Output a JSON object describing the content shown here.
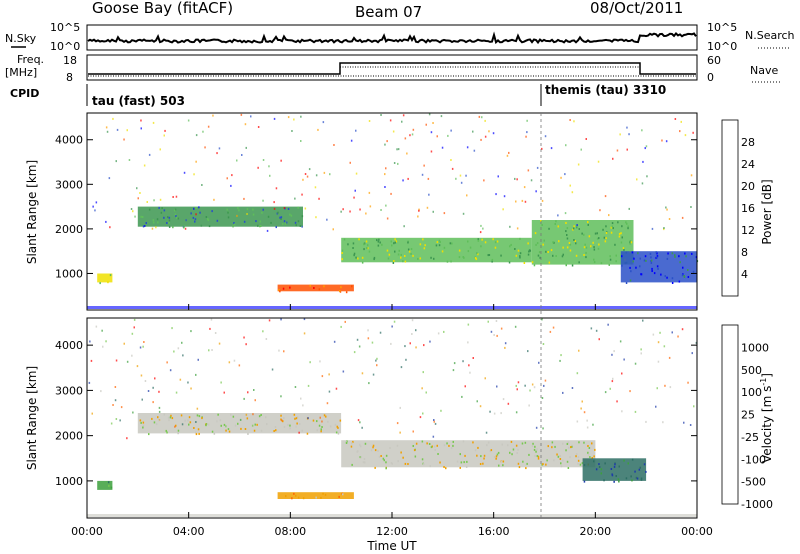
{
  "header": {
    "station": "Goose Bay (fitACF)",
    "beam": "Beam 07",
    "date": "08/Oct/2011"
  },
  "status_panels": {
    "nsky_label": "N.Sky",
    "nsky_ticks": [
      "10^5",
      "10^0"
    ],
    "nsearch_label": "N.Search",
    "nsearch_ticks": [
      "10^5",
      "10^0"
    ],
    "freq_label": "Freq.",
    "freq_unit": "[MHz]",
    "freq_ticks": [
      "18",
      "8"
    ],
    "nave_label": "Nave",
    "nave_ticks": [
      "60",
      "0"
    ],
    "cpid_label": "CPID",
    "cpid_modes": [
      {
        "label": "tau (fast) 503",
        "start_hour": 0
      },
      {
        "label": "themis (tau) 3310",
        "start_hour": 18
      }
    ]
  },
  "chart_data": [
    {
      "type": "heatmap",
      "quantity": "Power",
      "ylabel": "Slant Range [km]",
      "yticks": [
        "4000",
        "3000",
        "2000",
        "1000"
      ],
      "ylim": [
        180,
        4600
      ],
      "colorbar_label": "Power [dB]",
      "colorbar_ticks": [
        "28",
        "24",
        "20",
        "16",
        "12",
        "8",
        "4"
      ],
      "colorscale": [
        "#0000ff",
        "#2a50c8",
        "#3c9650",
        "#5fbe5a",
        "#f0e000",
        "#ffa000",
        "#ff5000",
        "#ff0000"
      ],
      "echo_regions": [
        {
          "hours": [
            0.4,
            1.0
          ],
          "range_km": [
            800,
            1000
          ],
          "level": 4
        },
        {
          "hours": [
            2.0,
            8.5
          ],
          "range_km": [
            2050,
            2500
          ],
          "level": 2
        },
        {
          "hours": [
            7.5,
            10.5
          ],
          "range_km": [
            600,
            750
          ],
          "level": 6
        },
        {
          "hours": [
            10.0,
            17.5
          ],
          "range_km": [
            1250,
            1800
          ],
          "level": 3
        },
        {
          "hours": [
            17.5,
            21.5
          ],
          "range_km": [
            1200,
            2200
          ],
          "level": 3
        },
        {
          "hours": [
            21.0,
            24.0
          ],
          "range_km": [
            800,
            1500
          ],
          "level": 1
        }
      ]
    },
    {
      "type": "heatmap",
      "quantity": "Velocity",
      "ylabel": "Slant Range [km]",
      "yticks": [
        "4000",
        "3000",
        "2000",
        "1000"
      ],
      "ylim": [
        180,
        4600
      ],
      "colorbar_label": "Velocity [m s",
      "colorbar_label_sup": "-1",
      "colorbar_label_end": "]",
      "colorbar_ticks": [
        "1000",
        "500",
        "100",
        "25",
        "-25",
        "-100",
        "-500",
        "-1000"
      ],
      "colorscale": [
        "#1e3caa",
        "#2d6e64",
        "#3ca03c",
        "#78c850",
        "#c8c8c0",
        "#f0a000",
        "#ff6400",
        "#ff0000"
      ],
      "echo_regions": [
        {
          "hours": [
            0.4,
            1.0
          ],
          "range_km": [
            800,
            1000
          ],
          "level": 2
        },
        {
          "hours": [
            2.0,
            10.0
          ],
          "range_km": [
            2050,
            2500
          ],
          "level": 4
        },
        {
          "hours": [
            7.5,
            10.5
          ],
          "range_km": [
            600,
            750
          ],
          "level": 5
        },
        {
          "hours": [
            10.0,
            20.0
          ],
          "range_km": [
            1300,
            1900
          ],
          "level": 4
        },
        {
          "hours": [
            19.5,
            22.0
          ],
          "range_km": [
            1000,
            1500
          ],
          "level": 1
        }
      ]
    }
  ],
  "x_axis": {
    "label": "Time UT",
    "ticks": [
      "00:00",
      "04:00",
      "08:00",
      "12:00",
      "16:00",
      "20:00",
      "00:00"
    ],
    "range_hours": [
      0,
      24
    ]
  }
}
